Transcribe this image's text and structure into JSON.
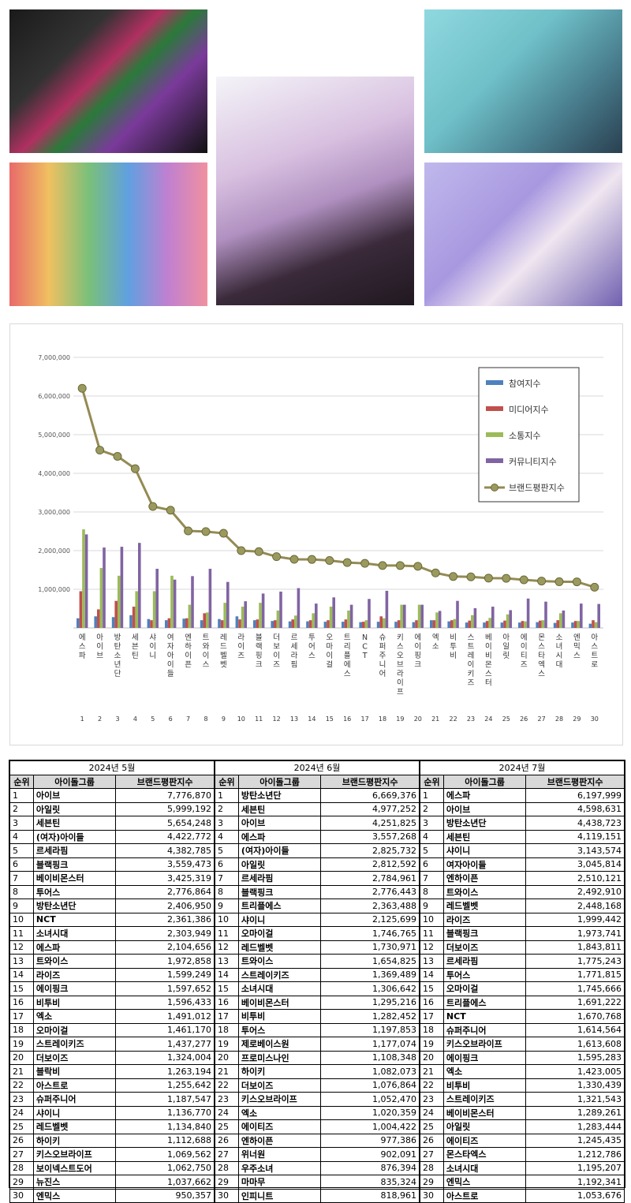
{
  "chart_data": {
    "type": "bar",
    "yticks": [
      "7,000,000",
      "6,000,000",
      "5,000,000",
      "4,000,000",
      "3,000,000",
      "2,000,000",
      "1,000,000"
    ],
    "ylim": [
      0,
      7000000
    ],
    "categories": [
      "에스파",
      "아이브",
      "방탄소년단",
      "세븐틴",
      "샤이니",
      "여자아이들",
      "엔하이픈",
      "트와이스",
      "레드벨벳",
      "라이즈",
      "블랙핑크",
      "더보이즈",
      "르세라핌",
      "투어스",
      "오마이걸",
      "트리플에스",
      "NCT",
      "슈퍼주니어",
      "키스오브라이프",
      "에이핑크",
      "엑소",
      "비투비",
      "스트레이키즈",
      "베이비몬스터",
      "아일릿",
      "에이티즈",
      "몬스타엑스",
      "소녀시대",
      "엔믹스",
      "아스트로"
    ],
    "ranks": [
      "1",
      "2",
      "3",
      "4",
      "5",
      "6",
      "7",
      "8",
      "9",
      "10",
      "11",
      "12",
      "13",
      "14",
      "15",
      "16",
      "17",
      "18",
      "19",
      "20",
      "21",
      "22",
      "23",
      "24",
      "25",
      "26",
      "27",
      "28",
      "29",
      "30"
    ],
    "legend": [
      "참여지수",
      "미디어지수",
      "소통지수",
      "커뮤니티지수",
      "브랜드평판지수"
    ],
    "series": [
      {
        "name": "참여지수",
        "color": "#4f81bd",
        "values": [
          250000,
          300000,
          280000,
          330000,
          230000,
          200000,
          240000,
          200000,
          230000,
          300000,
          200000,
          180000,
          170000,
          170000,
          160000,
          160000,
          150000,
          160000,
          160000,
          150000,
          200000,
          170000,
          140000,
          140000,
          140000,
          140000,
          150000,
          130000,
          140000,
          110000
        ]
      },
      {
        "name": "미디어지수",
        "color": "#c0504d",
        "values": [
          950000,
          480000,
          700000,
          550000,
          200000,
          250000,
          250000,
          380000,
          200000,
          220000,
          220000,
          200000,
          220000,
          200000,
          200000,
          220000,
          160000,
          300000,
          200000,
          200000,
          200000,
          200000,
          190000,
          180000,
          190000,
          180000,
          190000,
          200000,
          180000,
          200000
        ]
      },
      {
        "name": "소통지수",
        "color": "#9bbb59",
        "values": [
          2550000,
          1550000,
          1350000,
          950000,
          950000,
          1350000,
          600000,
          400000,
          650000,
          550000,
          650000,
          450000,
          320000,
          380000,
          550000,
          450000,
          200000,
          250000,
          600000,
          600000,
          400000,
          230000,
          330000,
          260000,
          350000,
          170000,
          200000,
          380000,
          180000,
          150000
        ]
      },
      {
        "name": "커뮤니티지수",
        "color": "#8064a2",
        "values": [
          2420000,
          2080000,
          2100000,
          2200000,
          1530000,
          1250000,
          1340000,
          1530000,
          1190000,
          690000,
          890000,
          940000,
          1030000,
          630000,
          790000,
          600000,
          750000,
          960000,
          600000,
          600000,
          440000,
          700000,
          510000,
          550000,
          460000,
          760000,
          680000,
          450000,
          630000,
          620000
        ]
      },
      {
        "name": "브랜드평판지수",
        "color": "#948a54",
        "values": [
          6197999,
          4598631,
          4438723,
          4119151,
          3143574,
          3045814,
          2510121,
          2492910,
          2448168,
          1999442,
          1973741,
          1843811,
          1775243,
          1771815,
          1745666,
          1691222,
          1670768,
          1614564,
          1613608,
          1595283,
          1423005,
          1330439,
          1321543,
          1289261,
          1283444,
          1245435,
          1212786,
          1195207,
          1192341,
          1053676
        ]
      }
    ]
  },
  "tables": [
    {
      "month": "2024년 5월",
      "headers": [
        "순위",
        "아이돌그룹",
        "브랜드평판지수"
      ],
      "rows": [
        [
          "1",
          "아이브",
          "7,776,870"
        ],
        [
          "2",
          "아일릿",
          "5,999,192"
        ],
        [
          "3",
          "세븐틴",
          "5,654,248"
        ],
        [
          "4",
          "(여자)아이들",
          "4,422,772"
        ],
        [
          "5",
          "르세라핌",
          "4,382,785"
        ],
        [
          "6",
          "블랙핑크",
          "3,559,473"
        ],
        [
          "7",
          "베이비몬스터",
          "3,425,319"
        ],
        [
          "8",
          "투어스",
          "2,776,864"
        ],
        [
          "9",
          "방탄소년단",
          "2,406,950"
        ],
        [
          "10",
          "NCT",
          "2,361,386"
        ],
        [
          "11",
          "소녀시대",
          "2,303,949"
        ],
        [
          "12",
          "에스파",
          "2,104,656"
        ],
        [
          "13",
          "트와이스",
          "1,972,858"
        ],
        [
          "14",
          "라이즈",
          "1,599,249"
        ],
        [
          "15",
          "에이핑크",
          "1,597,652"
        ],
        [
          "16",
          "비투비",
          "1,596,433"
        ],
        [
          "17",
          "엑소",
          "1,491,012"
        ],
        [
          "18",
          "오마이걸",
          "1,461,170"
        ],
        [
          "19",
          "스트레이키즈",
          "1,437,277"
        ],
        [
          "20",
          "더보이즈",
          "1,324,004"
        ],
        [
          "21",
          "블락비",
          "1,263,194"
        ],
        [
          "22",
          "아스트로",
          "1,255,642"
        ],
        [
          "23",
          "슈퍼주니어",
          "1,187,547"
        ],
        [
          "24",
          "샤이니",
          "1,136,770"
        ],
        [
          "25",
          "레드벨벳",
          "1,134,840"
        ],
        [
          "26",
          "하이키",
          "1,112,688"
        ],
        [
          "27",
          "키스오브라이프",
          "1,069,562"
        ],
        [
          "28",
          "보이넥스트도어",
          "1,062,750"
        ],
        [
          "29",
          "뉴진스",
          "1,037,662"
        ],
        [
          "30",
          "엔믹스",
          "950,357"
        ]
      ]
    },
    {
      "month": "2024년 6월",
      "headers": [
        "순위",
        "아이돌그룹",
        "브랜드평판지수"
      ],
      "rows": [
        [
          "1",
          "방탄소년단",
          "6,669,376"
        ],
        [
          "2",
          "세븐틴",
          "4,977,252"
        ],
        [
          "3",
          "아이브",
          "4,251,825"
        ],
        [
          "4",
          "에스파",
          "3,557,268"
        ],
        [
          "5",
          "(여자)아이들",
          "2,825,732"
        ],
        [
          "6",
          "아일릿",
          "2,812,592"
        ],
        [
          "7",
          "르세라핌",
          "2,784,961"
        ],
        [
          "8",
          "블랙핑크",
          "2,776,443"
        ],
        [
          "9",
          "트리플에스",
          "2,363,488"
        ],
        [
          "10",
          "샤이니",
          "2,125,699"
        ],
        [
          "11",
          "오마이걸",
          "1,746,765"
        ],
        [
          "12",
          "레드벨벳",
          "1,730,971"
        ],
        [
          "13",
          "트와이스",
          "1,654,825"
        ],
        [
          "14",
          "스트레이키즈",
          "1,369,489"
        ],
        [
          "15",
          "소녀시대",
          "1,306,642"
        ],
        [
          "16",
          "베이비몬스터",
          "1,295,216"
        ],
        [
          "17",
          "비투비",
          "1,282,452"
        ],
        [
          "18",
          "투어스",
          "1,197,853"
        ],
        [
          "19",
          "제로베이스원",
          "1,177,074"
        ],
        [
          "20",
          "프로미스나인",
          "1,108,348"
        ],
        [
          "21",
          "하이키",
          "1,082,073"
        ],
        [
          "22",
          "더보이즈",
          "1,076,864"
        ],
        [
          "23",
          "키스오브라이프",
          "1,052,470"
        ],
        [
          "24",
          "엑소",
          "1,020,359"
        ],
        [
          "25",
          "에이티즈",
          "1,004,422"
        ],
        [
          "26",
          "엔하이픈",
          "977,386"
        ],
        [
          "27",
          "위너원",
          "902,091"
        ],
        [
          "28",
          "우주소녀",
          "876,394"
        ],
        [
          "29",
          "마마무",
          "835,324"
        ],
        [
          "30",
          "인피니트",
          "818,961"
        ]
      ]
    },
    {
      "month": "2024년 7월",
      "headers": [
        "순위",
        "아이돌그룹",
        "브랜드평판지수"
      ],
      "rows": [
        [
          "1",
          "에스파",
          "6,197,999"
        ],
        [
          "2",
          "아이브",
          "4,598,631"
        ],
        [
          "3",
          "방탄소년단",
          "4,438,723"
        ],
        [
          "4",
          "세븐틴",
          "4,119,151"
        ],
        [
          "5",
          "샤이니",
          "3,143,574"
        ],
        [
          "6",
          "여자아이들",
          "3,045,814"
        ],
        [
          "7",
          "엔하이픈",
          "2,510,121"
        ],
        [
          "8",
          "트와이스",
          "2,492,910"
        ],
        [
          "9",
          "레드벨벳",
          "2,448,168"
        ],
        [
          "10",
          "라이즈",
          "1,999,442"
        ],
        [
          "11",
          "블랙핑크",
          "1,973,741"
        ],
        [
          "12",
          "더보이즈",
          "1,843,811"
        ],
        [
          "13",
          "르세라핌",
          "1,775,243"
        ],
        [
          "14",
          "투어스",
          "1,771,815"
        ],
        [
          "15",
          "오마이걸",
          "1,745,666"
        ],
        [
          "16",
          "트리플에스",
          "1,691,222"
        ],
        [
          "17",
          "NCT",
          "1,670,768"
        ],
        [
          "18",
          "슈퍼주니어",
          "1,614,564"
        ],
        [
          "19",
          "키스오브라이프",
          "1,613,608"
        ],
        [
          "20",
          "에이핑크",
          "1,595,283"
        ],
        [
          "21",
          "엑소",
          "1,423,005"
        ],
        [
          "22",
          "비투비",
          "1,330,439"
        ],
        [
          "23",
          "스트레이키즈",
          "1,321,543"
        ],
        [
          "24",
          "베이비몬스터",
          "1,289,261"
        ],
        [
          "25",
          "아일릿",
          "1,283,444"
        ],
        [
          "26",
          "에이티즈",
          "1,245,435"
        ],
        [
          "27",
          "몬스타엑스",
          "1,212,786"
        ],
        [
          "28",
          "소녀시대",
          "1,195,207"
        ],
        [
          "29",
          "엔믹스",
          "1,192,341"
        ],
        [
          "30",
          "아스트로",
          "1,053,676"
        ]
      ]
    }
  ]
}
